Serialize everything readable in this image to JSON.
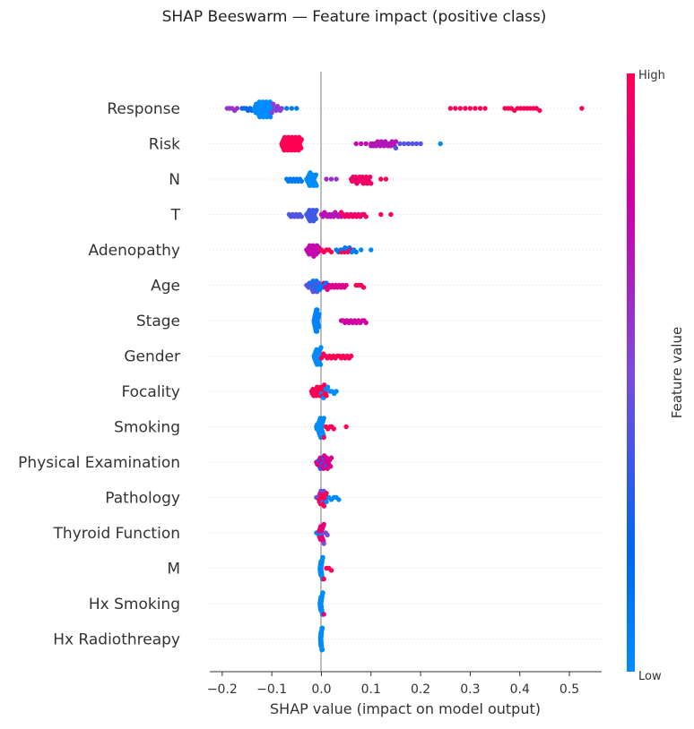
{
  "chart_data": {
    "type": "scatter",
    "subtype": "beeswarm",
    "title": "SHAP Beeswarm — Feature impact (positive class)",
    "xlabel": "SHAP value (impact on model output)",
    "xlim": [
      -0.225,
      0.565
    ],
    "xticks": [
      -0.2,
      -0.1,
      0.0,
      0.1,
      0.2,
      0.3,
      0.4,
      0.5
    ],
    "xtick_labels": [
      "−0.2",
      "−0.1",
      "0.0",
      "0.1",
      "0.2",
      "0.3",
      "0.4",
      "0.5"
    ],
    "colorbar": {
      "label": "Feature value",
      "high_label": "High",
      "low_label": "Low",
      "low_color": "#008bfb",
      "mid_color": "#7c4bdc",
      "high_color": "#ff0052"
    },
    "zero_line_color": "#999999",
    "grid": false,
    "features": [
      {
        "name": "Response",
        "groups": [
          {
            "from": -0.19,
            "to": -0.17,
            "n": 5,
            "c": 0.6
          },
          {
            "from": -0.16,
            "to": -0.14,
            "n": 6,
            "c": 0.2
          },
          {
            "from": -0.135,
            "to": -0.1,
            "n": 40,
            "c": 0.0
          },
          {
            "from": -0.1,
            "to": -0.08,
            "n": 8,
            "c": 0.55
          },
          {
            "from": -0.07,
            "to": -0.05,
            "n": 3,
            "c": 0.1
          },
          {
            "from": 0.26,
            "to": 0.33,
            "n": 8,
            "c": 1.0
          },
          {
            "from": 0.37,
            "to": 0.44,
            "n": 12,
            "c": 1.0
          },
          {
            "from": 0.52,
            "to": 0.53,
            "n": 1,
            "c": 1.0
          }
        ]
      },
      {
        "name": "Risk",
        "groups": [
          {
            "from": -0.08,
            "to": -0.04,
            "n": 40,
            "c": 1.0
          },
          {
            "from": 0.07,
            "to": 0.1,
            "n": 4,
            "c": 0.75
          },
          {
            "from": 0.1,
            "to": 0.15,
            "n": 20,
            "c": 0.7
          },
          {
            "from": 0.15,
            "to": 0.2,
            "n": 7,
            "c": 0.4
          },
          {
            "from": 0.24,
            "to": 0.24,
            "n": 1,
            "c": 0.0
          }
        ]
      },
      {
        "name": "N",
        "groups": [
          {
            "from": -0.07,
            "to": -0.04,
            "n": 10,
            "c": 0.1
          },
          {
            "from": -0.03,
            "to": -0.01,
            "n": 20,
            "c": 0.0
          },
          {
            "from": 0.01,
            "to": 0.03,
            "n": 3,
            "c": 0.6
          },
          {
            "from": 0.06,
            "to": 0.1,
            "n": 22,
            "c": 0.95
          },
          {
            "from": 0.12,
            "to": 0.13,
            "n": 2,
            "c": 1.0
          }
        ]
      },
      {
        "name": "T",
        "groups": [
          {
            "from": -0.065,
            "to": -0.04,
            "n": 8,
            "c": 0.4
          },
          {
            "from": -0.03,
            "to": -0.01,
            "n": 18,
            "c": 0.35
          },
          {
            "from": 0.0,
            "to": 0.04,
            "n": 14,
            "c": 0.7
          },
          {
            "from": 0.04,
            "to": 0.09,
            "n": 14,
            "c": 0.95
          },
          {
            "from": 0.12,
            "to": 0.14,
            "n": 2,
            "c": 1.0
          }
        ]
      },
      {
        "name": "Adenopathy",
        "groups": [
          {
            "from": -0.03,
            "to": -0.005,
            "n": 20,
            "c": 0.75
          },
          {
            "from": 0.0,
            "to": 0.02,
            "n": 5,
            "c": 1.0
          },
          {
            "from": 0.03,
            "to": 0.07,
            "n": 10,
            "c": 0.1
          },
          {
            "from": 0.04,
            "to": 0.06,
            "n": 4,
            "c": 1.0
          },
          {
            "from": 0.08,
            "to": 0.1,
            "n": 2,
            "c": 0.0
          }
        ]
      },
      {
        "name": "Age",
        "groups": [
          {
            "from": -0.03,
            "to": -0.005,
            "n": 14,
            "c": 0.4
          },
          {
            "from": -0.02,
            "to": 0.01,
            "n": 10,
            "c": 0.1
          },
          {
            "from": 0.005,
            "to": 0.05,
            "n": 14,
            "c": 0.85
          },
          {
            "from": 0.07,
            "to": 0.085,
            "n": 4,
            "c": 1.0
          }
        ]
      },
      {
        "name": "Stage",
        "groups": [
          {
            "from": -0.015,
            "to": -0.005,
            "n": 22,
            "c": 0.05
          },
          {
            "from": 0.04,
            "to": 0.09,
            "n": 14,
            "c": 0.8
          }
        ]
      },
      {
        "name": "Gender",
        "groups": [
          {
            "from": -0.015,
            "to": 0.0,
            "n": 18,
            "c": 0.0
          },
          {
            "from": 0.0,
            "to": 0.06,
            "n": 16,
            "c": 1.0
          }
        ]
      },
      {
        "name": "Focality",
        "groups": [
          {
            "from": -0.02,
            "to": 0.01,
            "n": 22,
            "c": 1.0
          },
          {
            "from": 0.0,
            "to": 0.03,
            "n": 8,
            "c": 0.0
          }
        ]
      },
      {
        "name": "Smoking",
        "groups": [
          {
            "from": -0.01,
            "to": 0.005,
            "n": 22,
            "c": 0.0
          },
          {
            "from": 0.005,
            "to": 0.025,
            "n": 6,
            "c": 1.0
          },
          {
            "from": 0.05,
            "to": 0.05,
            "n": 1,
            "c": 1.0
          }
        ]
      },
      {
        "name": "Physical Examination",
        "groups": [
          {
            "from": -0.01,
            "to": 0.02,
            "n": 20,
            "c": 0.85
          },
          {
            "from": -0.005,
            "to": 0.01,
            "n": 6,
            "c": 0.3
          }
        ]
      },
      {
        "name": "Pathology",
        "groups": [
          {
            "from": -0.005,
            "to": 0.01,
            "n": 14,
            "c": 1.0
          },
          {
            "from": -0.01,
            "to": 0.005,
            "n": 6,
            "c": 0.45
          },
          {
            "from": 0.01,
            "to": 0.035,
            "n": 6,
            "c": 0.0
          }
        ]
      },
      {
        "name": "Thyroid Function",
        "groups": [
          {
            "from": -0.005,
            "to": 0.005,
            "n": 14,
            "c": 0.9
          },
          {
            "from": -0.01,
            "to": 0.0,
            "n": 3,
            "c": 0.0
          },
          {
            "from": 0.005,
            "to": 0.012,
            "n": 3,
            "c": 0.5
          }
        ]
      },
      {
        "name": "M",
        "groups": [
          {
            "from": -0.003,
            "to": 0.003,
            "n": 20,
            "c": 0.0
          },
          {
            "from": 0.005,
            "to": 0.02,
            "n": 4,
            "c": 1.0
          }
        ]
      },
      {
        "name": "Hx Smoking",
        "groups": [
          {
            "from": -0.003,
            "to": 0.003,
            "n": 20,
            "c": 0.0
          },
          {
            "from": 0.004,
            "to": 0.006,
            "n": 1,
            "c": 0.9
          }
        ]
      },
      {
        "name": "Hx Radiothreapy",
        "groups": [
          {
            "from": -0.002,
            "to": 0.002,
            "n": 24,
            "c": 0.0
          }
        ]
      }
    ]
  }
}
